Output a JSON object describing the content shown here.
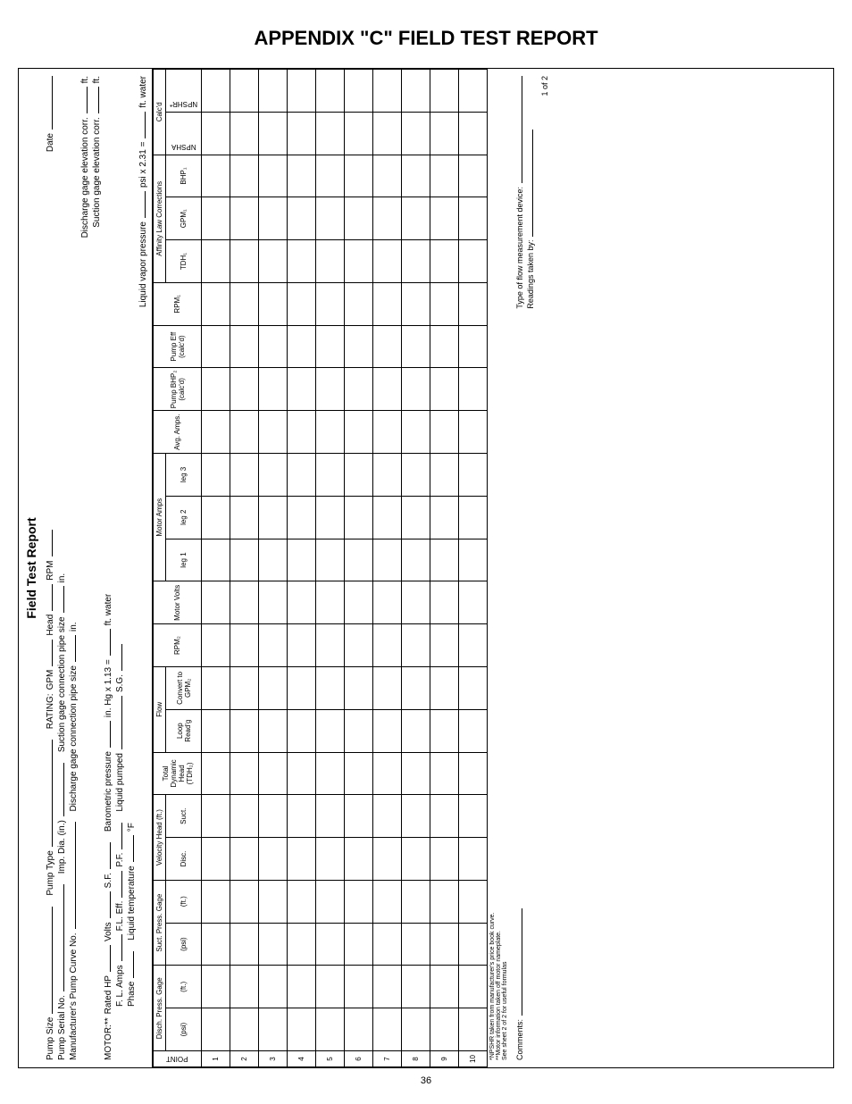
{
  "appendix_title": "APPENDIX \"C\" FIELD TEST REPORT",
  "form_title": "Field Test Report",
  "header": {
    "pump_size": "Pump Size",
    "pump_type": "Pump Type",
    "rating": "RATING:",
    "gpm": "GPM",
    "head": "Head",
    "rpm": "RPM",
    "date": "Date",
    "pump_serial": "Pump Serial No.",
    "imp_dia": "Imp. Dia. (in.)",
    "suct_conn": "Suction gage connection pipe size",
    "in1": "in.",
    "mfr_curve": "Manufacturer's Pump Curve No.",
    "disch_conn": "Discharge gage connection pipe size",
    "in2": "in.",
    "disch_elev": "Discharge gage elevation corr.",
    "ft1": "ft.",
    "suct_elev": "Suction gage elevation corr.",
    "ft2": "ft.",
    "motor": "MOTOR:**",
    "rated_hp": "Rated HP",
    "volts_lbl": "Volts",
    "sf": "S.F.",
    "baro": "Barometric pressure",
    "inhg": "in. Hg x 1.13 =",
    "ftwater1": "ft. water",
    "fl_amps": "F. L. Amps",
    "fl_eff": "F.L. Eff.",
    "pf": "P.F.",
    "liq_pumped": "Liquid pumped",
    "sg": "S.G.",
    "phase": "Phase",
    "liq_temp": "Liquid temperature",
    "degf": "°F",
    "liq_vapor": "Liquid vapor pressure",
    "psi231": "psi x 2.31 =",
    "ftwater2": "ft. water"
  },
  "cols": {
    "point": "POINT",
    "disch_press": "Disch. Press. Gage",
    "psi": "(psi)",
    "ft": "(ft.)",
    "suct_press": "Suct. Press. Gage",
    "vel_head": "Velocity Head (ft.)",
    "disc": "Disc.",
    "suct": "Suct.",
    "tdh": "Total Dynamic Head (TDH₂)",
    "flow": "Flow",
    "loop": "Loop Read'g",
    "convert": "Convert to GPM₂",
    "rpm2": "RPM₂",
    "motor_volts": "Motor Volts",
    "motor_amps": "Motor Amps",
    "leg1": "leg 1",
    "leg2": "leg 2",
    "leg3": "leg 3",
    "avg_amps": "Avg. Amps.",
    "pump_bhp": "Pump BHP₂ (calc'd)",
    "pump_eff": "Pump Eff (calc'd)",
    "rpm1": "RPM₁",
    "affinity": "Affinity Law Corrections",
    "tdh1": "TDH₁",
    "gpm1": "GPM₁",
    "bhp1": "BHP₁",
    "calcd": "Calc'd",
    "npsha": "NPSHA",
    "npshr": "NPSHR*"
  },
  "rows": [
    "1",
    "2",
    "3",
    "4",
    "5",
    "6",
    "7",
    "8",
    "9",
    "10"
  ],
  "notes": {
    "n1": "*NPSHR taken from manufacturer's price book curve.",
    "n2": "**Motor information taken off motor nameplate.",
    "n3": "See sheet 2 of 2 for useful formulas"
  },
  "footer": {
    "type_device": "Type of flow measurement device:",
    "readings_by": "Readings taken by:",
    "comments": "Comments:",
    "page": "1 of 2",
    "pagenum_bottom": "36"
  }
}
